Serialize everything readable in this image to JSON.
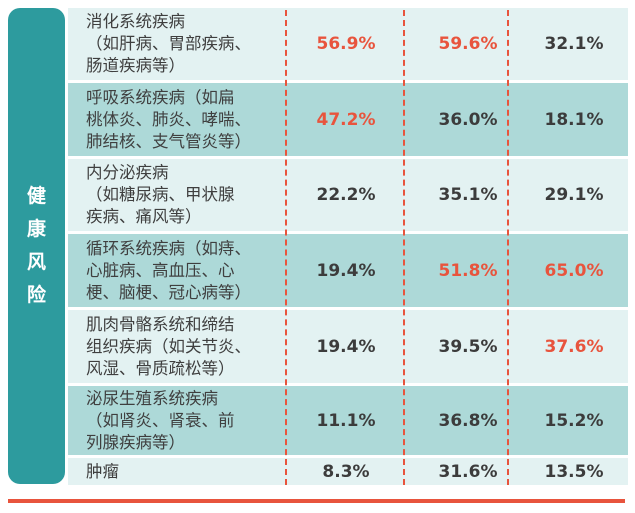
{
  "category_label": [
    "健",
    "康",
    "风",
    "险"
  ],
  "rows": [
    {
      "name": "消化系统疾病\n（如肝病、胃部疾病、\n肠道疾病等）",
      "values": [
        "56.9%",
        "59.6%",
        "32.1%"
      ],
      "highlight": [
        true,
        true,
        false
      ]
    },
    {
      "name": "呼吸系统疾病（如扁\n桃体炎、肺炎、哮喘、\n肺结核、支气管炎等）",
      "values": [
        "47.2%",
        "36.0%",
        "18.1%"
      ],
      "highlight": [
        true,
        false,
        false
      ]
    },
    {
      "name": "内分泌疾病\n（如糖尿病、甲状腺\n疾病、痛风等）",
      "values": [
        "22.2%",
        "35.1%",
        "29.1%"
      ],
      "highlight": [
        false,
        false,
        false
      ]
    },
    {
      "name": "循环系统疾病（如痔、\n心脏病、高血压、心\n梗、脑梗、冠心病等）",
      "values": [
        "19.4%",
        "51.8%",
        "65.0%"
      ],
      "highlight": [
        false,
        true,
        true
      ]
    },
    {
      "name": "肌肉骨骼系统和缔结\n组织疾病（如关节炎、\n风湿、骨质疏松等）",
      "values": [
        "19.4%",
        "39.5%",
        "37.6%"
      ],
      "highlight": [
        false,
        false,
        true
      ]
    },
    {
      "name": "泌尿生殖系统疾病\n（如肾炎、肾衰、前\n列腺疾病等）",
      "values": [
        "11.1%",
        "36.8%",
        "15.2%"
      ],
      "highlight": [
        false,
        false,
        false
      ]
    },
    {
      "name": "肿瘤",
      "values": [
        "8.3%",
        "31.6%",
        "13.5%"
      ],
      "highlight": [
        false,
        false,
        false
      ]
    }
  ],
  "colors": {
    "teal": "#2d9b9e",
    "row_light": "#e3f2f2",
    "row_dark": "#add9d8",
    "highlight": "#e8543d"
  }
}
